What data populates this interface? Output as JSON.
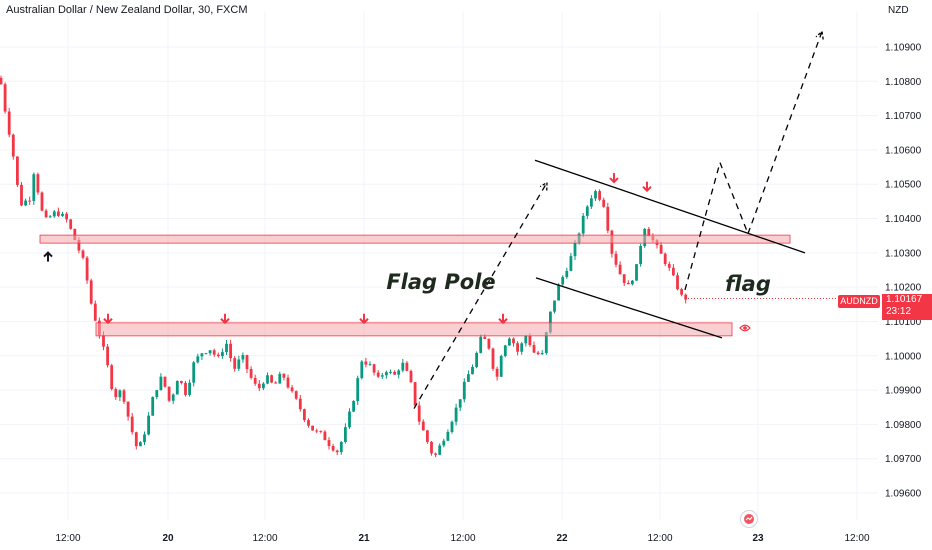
{
  "header": {
    "title": "Australian Dollar / New Zealand Dollar, 30, FXCM",
    "currency": "NZD"
  },
  "price_tag": {
    "symbol": "AUDNZD",
    "price": "1.10167",
    "countdown": "23:12"
  },
  "colors": {
    "up": "#089981",
    "down": "#f23645",
    "zone_fill": "#f4a7ad",
    "zone_border": "#f23645",
    "line": "#000000",
    "marker_down": "#f23645",
    "marker_up": "#131722"
  },
  "icons": [
    "eye-icon",
    "tradingview-logo-icon"
  ],
  "chart_data": {
    "type": "candlestick",
    "symbol": "AUDNZD",
    "timeframe": "30",
    "y_ticks": [
      "1.10900",
      "1.10800",
      "1.10700",
      "1.10600",
      "1.10500",
      "1.10400",
      "1.10300",
      "1.10200",
      "1.10100",
      "1.10000",
      "1.09900",
      "1.09800",
      "1.09700",
      "1.09600"
    ],
    "ylim": [
      1.0953,
      1.1096
    ],
    "x_ticks": [
      {
        "label": "12:00",
        "x": 1,
        "bold": false
      },
      {
        "label": "20",
        "x": 2,
        "bold": true
      },
      {
        "label": "12:00",
        "x": 3,
        "bold": false
      },
      {
        "label": "21",
        "x": 4,
        "bold": true
      },
      {
        "label": "12:00",
        "x": 5,
        "bold": false
      },
      {
        "label": "22",
        "x": 6,
        "bold": true
      },
      {
        "label": "12:00",
        "x": 7,
        "bold": false
      },
      {
        "label": "23",
        "x": 8,
        "bold": true
      },
      {
        "label": "12:00",
        "x": 9,
        "bold": false
      }
    ],
    "last_price": 1.10167,
    "close_path": [
      [
        0,
        1.1081
      ],
      [
        6,
        1.107
      ],
      [
        12,
        1.1061
      ],
      [
        20,
        1.1044
      ],
      [
        30,
        1.1046
      ],
      [
        34,
        1.1054
      ],
      [
        44,
        1.1039
      ],
      [
        56,
        1.1042
      ],
      [
        66,
        1.104
      ],
      [
        76,
        1.1033
      ],
      [
        84,
        1.1027
      ],
      [
        92,
        1.1014
      ],
      [
        98,
        1.1008
      ],
      [
        106,
        1.0999
      ],
      [
        114,
        1.0988
      ],
      [
        122,
        1.099
      ],
      [
        130,
        1.098
      ],
      [
        138,
        1.0972
      ],
      [
        146,
        1.0979
      ],
      [
        154,
        1.0989
      ],
      [
        162,
        1.0994
      ],
      [
        170,
        1.0986
      ],
      [
        178,
        1.0994
      ],
      [
        186,
        1.0989
      ],
      [
        194,
        1.0998
      ],
      [
        202,
        1.1001
      ],
      [
        210,
        1.1002
      ],
      [
        218,
        1.0999
      ],
      [
        226,
        1.1004
      ],
      [
        234,
        1.0996
      ],
      [
        242,
        1.1
      ],
      [
        250,
        1.0994
      ],
      [
        258,
        1.099
      ],
      [
        266,
        1.0994
      ],
      [
        274,
        1.0991
      ],
      [
        282,
        1.0995
      ],
      [
        290,
        1.099
      ],
      [
        298,
        1.0986
      ],
      [
        306,
        1.0981
      ],
      [
        314,
        1.0978
      ],
      [
        322,
        1.0977
      ],
      [
        330,
        1.0974
      ],
      [
        338,
        1.0972
      ],
      [
        346,
        1.0979
      ],
      [
        354,
        1.0988
      ],
      [
        362,
        1.0999
      ],
      [
        370,
        1.0997
      ],
      [
        378,
        1.0993
      ],
      [
        386,
        1.0996
      ],
      [
        394,
        1.0994
      ],
      [
        402,
        1.0998
      ],
      [
        410,
        1.0993
      ],
      [
        418,
        1.0982
      ],
      [
        426,
        1.0976
      ],
      [
        434,
        1.097
      ],
      [
        442,
        1.0975
      ],
      [
        450,
        1.098
      ],
      [
        458,
        1.0986
      ],
      [
        466,
        1.0993
      ],
      [
        474,
        1.0998
      ],
      [
        482,
        1.1006
      ],
      [
        490,
        1.1002
      ],
      [
        496,
        1.0992
      ],
      [
        502,
        1.1002
      ],
      [
        510,
        1.1006
      ],
      [
        518,
        1.1001
      ],
      [
        526,
        1.1006
      ],
      [
        534,
        1.1001
      ],
      [
        542,
        1.1
      ],
      [
        550,
        1.1012
      ],
      [
        558,
        1.102
      ],
      [
        566,
        1.1025
      ],
      [
        574,
        1.1031
      ],
      [
        582,
        1.1039
      ],
      [
        590,
        1.1046
      ],
      [
        596,
        1.1048
      ],
      [
        604,
        1.1044
      ],
      [
        612,
        1.103
      ],
      [
        620,
        1.1024
      ],
      [
        628,
        1.102
      ],
      [
        636,
        1.1025
      ],
      [
        644,
        1.1038
      ],
      [
        652,
        1.1034
      ],
      [
        660,
        1.103
      ],
      [
        668,
        1.1026
      ],
      [
        676,
        1.1021
      ],
      [
        682,
        1.1017
      ],
      [
        688,
        1.10167
      ]
    ],
    "zones": [
      {
        "from_x": 40,
        "to_x": 790,
        "high": 1.10345,
        "low": 1.10335
      },
      {
        "from_x": 96,
        "to_x": 732,
        "high": 1.10081,
        "low": 1.1007
      }
    ],
    "down_markers": [
      {
        "x": 108,
        "price": 1.10105
      },
      {
        "x": 225,
        "price": 1.10105
      },
      {
        "x": 364,
        "price": 1.10105
      },
      {
        "x": 503,
        "price": 1.10105
      },
      {
        "x": 614,
        "price": 1.10515
      },
      {
        "x": 647,
        "price": 1.1049
      }
    ],
    "up_markers": [
      {
        "x": 48,
        "price": 1.10292
      }
    ],
    "channel_lines": [
      {
        "x1": 535,
        "y1": 1.1057,
        "x2": 805,
        "y2": 1.103
      },
      {
        "x1": 536,
        "y1": 1.10227,
        "x2": 722,
        "y2": 1.10052
      }
    ],
    "projection_dashes": [
      [
        [
          414,
          1.09846
        ],
        [
          547,
          1.10505
        ]
      ],
      [
        [
          685,
          1.10192
        ],
        [
          720,
          1.10563
        ]
      ],
      [
        [
          720,
          1.10563
        ],
        [
          748,
          1.10356
        ]
      ],
      [
        [
          748,
          1.10356
        ],
        [
          822,
          1.10945
        ]
      ]
    ],
    "annotations": [
      {
        "text": "Flag Pole",
        "x": 441,
        "price": 1.10195,
        "size": 21
      },
      {
        "text": "flag",
        "x": 748,
        "price": 1.10189,
        "size": 21
      }
    ]
  }
}
